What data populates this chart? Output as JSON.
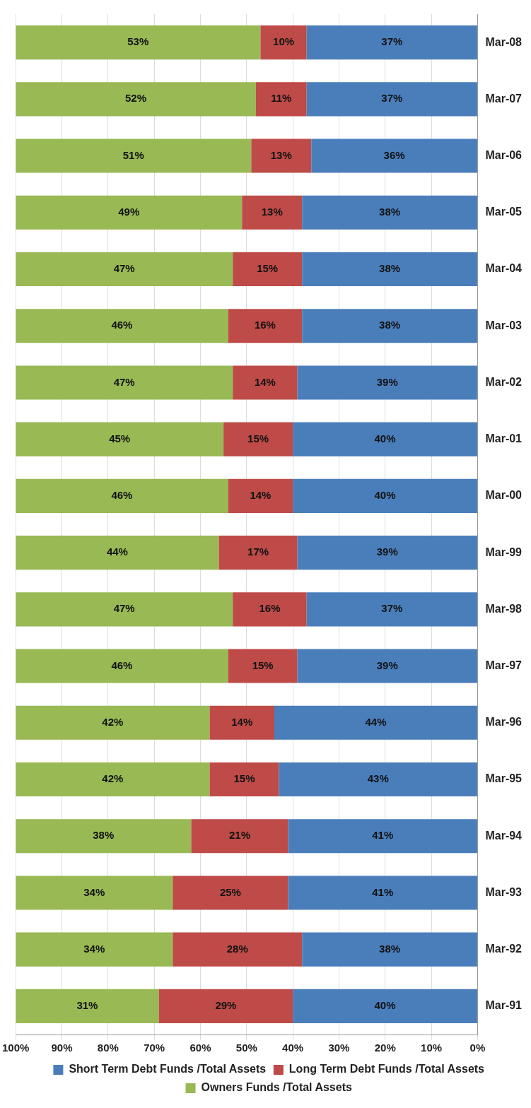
{
  "chart_data": {
    "type": "bar",
    "orientation": "horizontal",
    "stacked": true,
    "categories": [
      "Mar-08",
      "Mar-07",
      "Mar-06",
      "Mar-05",
      "Mar-04",
      "Mar-03",
      "Mar-02",
      "Mar-01",
      "Mar-00",
      "Mar-99",
      "Mar-98",
      "Mar-97",
      "Mar-96",
      "Mar-95",
      "Mar-94",
      "Mar-93",
      "Mar-92",
      "Mar-91"
    ],
    "series": [
      {
        "name": "Short Term Debt Funds /Total Assets",
        "color": "#4a7ebb",
        "values": [
          37,
          37,
          36,
          38,
          38,
          38,
          39,
          40,
          40,
          39,
          37,
          39,
          44,
          43,
          41,
          41,
          38,
          40
        ],
        "value_labels": [
          "37%",
          "37%",
          "36%",
          "38%",
          "38%",
          "38%",
          "39%",
          "40%",
          "40%",
          "39%",
          "37%",
          "39%",
          "44%",
          "43%",
          "41%",
          "41%",
          "38%",
          "40%"
        ]
      },
      {
        "name": "Long Term Debt Funds /Total Assets",
        "color": "#be4b48",
        "values": [
          10,
          11,
          13,
          13,
          15,
          16,
          14,
          15,
          14,
          17,
          16,
          15,
          14,
          15,
          21,
          25,
          28,
          29
        ],
        "value_labels": [
          "10%",
          "11%",
          "13%",
          "13%",
          "15%",
          "16%",
          "14%",
          "15%",
          "14%",
          "17%",
          "16%",
          "15%",
          "14%",
          "15%",
          "21%",
          "25%",
          "28%",
          "29%"
        ]
      },
      {
        "name": "Owners Funds /Total Assets",
        "color": "#98b954",
        "values": [
          53,
          52,
          51,
          49,
          47,
          46,
          47,
          45,
          46,
          44,
          47,
          46,
          42,
          42,
          38,
          34,
          34,
          31
        ],
        "value_labels": [
          "53%",
          "52%",
          "51%",
          "49%",
          "47%",
          "46%",
          "47%",
          "45%",
          "46%",
          "44%",
          "47%",
          "46%",
          "42%",
          "42%",
          "38%",
          "34%",
          "34%",
          "31%"
        ]
      }
    ],
    "xlim": [
      100,
      0
    ],
    "xticks": [
      {
        "value": 100,
        "label": "100%"
      },
      {
        "value": 90,
        "label": "90%"
      },
      {
        "value": 80,
        "label": "80%"
      },
      {
        "value": 70,
        "label": "70%"
      },
      {
        "value": 60,
        "label": "60%"
      },
      {
        "value": 50,
        "label": "50%"
      },
      {
        "value": 40,
        "label": "40%"
      },
      {
        "value": 30,
        "label": "30%"
      },
      {
        "value": 20,
        "label": "20%"
      },
      {
        "value": 10,
        "label": "10%"
      },
      {
        "value": 0,
        "label": "0%"
      }
    ],
    "grid": "x",
    "legend": "bottom"
  }
}
